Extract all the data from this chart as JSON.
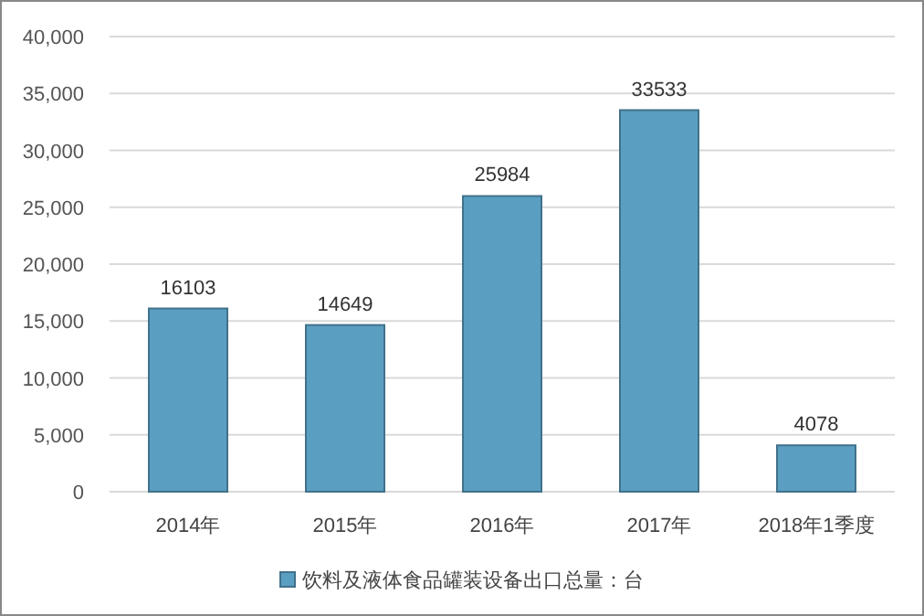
{
  "chart_data": {
    "type": "bar",
    "categories": [
      "2014年",
      "2015年",
      "2016年",
      "2017年",
      "2018年1季度"
    ],
    "series": [
      {
        "name": "饮料及液体食品罐装设备出口总量：台",
        "color": "#5a9fc2",
        "values": [
          16103,
          14649,
          25984,
          33533,
          4078
        ]
      }
    ],
    "ylim": [
      0,
      40000
    ],
    "yticks": [
      0,
      {
        "value": 5000,
        "label": "5,000"
      },
      {
        "value": 10000,
        "label": "10,000"
      },
      {
        "value": 15000,
        "label": "15,000"
      },
      {
        "value": 20000,
        "label": "20,000"
      },
      {
        "value": 25000,
        "label": "25,000"
      },
      {
        "value": 30000,
        "label": "30,000"
      },
      {
        "value": 35000,
        "label": "35,000"
      },
      {
        "value": 40000,
        "label": "40,000"
      }
    ],
    "grid": "y",
    "legend": "bottom",
    "data_labels": true
  }
}
